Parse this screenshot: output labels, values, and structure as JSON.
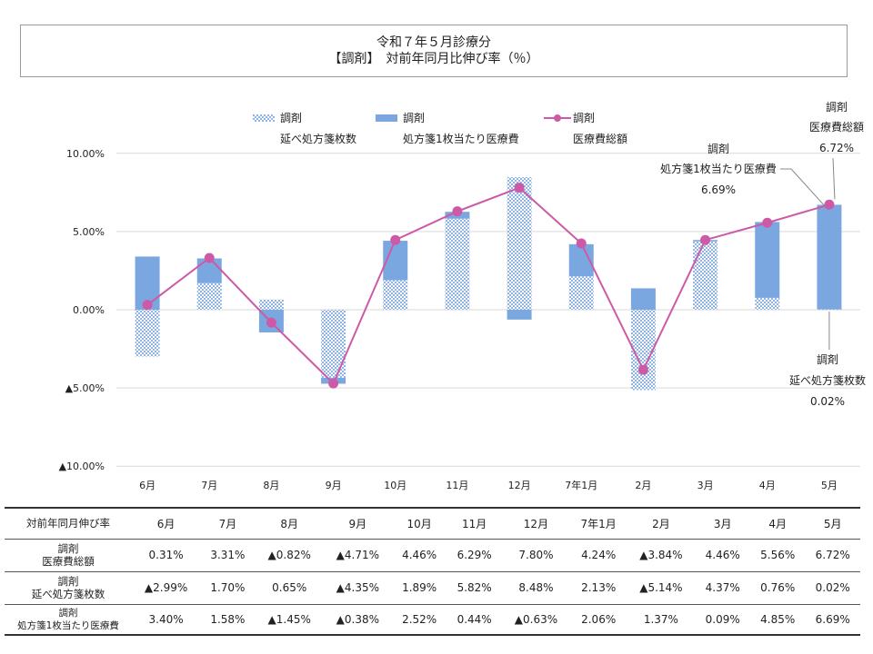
{
  "title": {
    "line1": "令和７年５月診療分",
    "line2": "【調剤】　対前年同月比伸び率（％）"
  },
  "legend": [
    {
      "line1": "調剤",
      "line2": "延べ処方箋枚数",
      "style": "pattern"
    },
    {
      "line1": "調剤",
      "line2": "処方箋1枚当たり医療費",
      "style": "solid"
    },
    {
      "line1": "調剤",
      "line2": "医療費総額",
      "style": "line"
    }
  ],
  "callouts": {
    "per_rx": {
      "line1": "調剤",
      "line2": "処方箋1枚当たり医療費",
      "value": "6.69%"
    },
    "total": {
      "line1": "調剤",
      "line2": "医療費総額",
      "value": "6.72%"
    },
    "count": {
      "line1": "調剤",
      "line2": "延べ処方箋枚数",
      "value": "0.02%"
    }
  },
  "colors": {
    "bar_solid": "#7ba7e1",
    "bar_pattern": "#8eb3e6",
    "line": "#cc5aa6",
    "grid": "#d9d9d9"
  },
  "chart_data": {
    "type": "bar",
    "stacked": true,
    "categories": [
      "6月",
      "7月",
      "8月",
      "9月",
      "10月",
      "11月",
      "12月",
      "7年1月",
      "2月",
      "3月",
      "4月",
      "5月"
    ],
    "ylim": [
      -10,
      10
    ],
    "yticks": [
      10,
      5,
      0,
      -5,
      -10
    ],
    "ytick_labels": [
      "10.00%",
      "5.00%",
      "0.00%",
      "▲5.00%",
      "▲10.00%"
    ],
    "grid": true,
    "legend_position": "top",
    "series": [
      {
        "name": "調剤 延べ処方箋枚数",
        "kind": "bar-pattern",
        "values": [
          -2.99,
          1.7,
          0.65,
          -4.35,
          1.89,
          5.82,
          8.48,
          2.13,
          -5.14,
          4.37,
          0.76,
          0.02
        ]
      },
      {
        "name": "調剤 処方箋1枚当たり医療費",
        "kind": "bar-solid",
        "values": [
          3.4,
          1.58,
          -1.45,
          -0.38,
          2.52,
          0.44,
          -0.63,
          2.06,
          1.37,
          0.09,
          4.85,
          6.69
        ]
      },
      {
        "name": "調剤 医療費総額",
        "kind": "line",
        "values": [
          0.31,
          3.31,
          -0.82,
          -4.71,
          4.46,
          6.29,
          7.8,
          4.24,
          -3.84,
          4.46,
          5.56,
          6.72
        ]
      }
    ]
  },
  "table": {
    "header_label": "対前年同月伸び率",
    "columns": [
      "6月",
      "7月",
      "8月",
      "9月",
      "10月",
      "11月",
      "12月",
      "7年1月",
      "2月",
      "3月",
      "4月",
      "5月"
    ],
    "rows": [
      {
        "label1": "調剤",
        "label2": "医療費総額",
        "cells": [
          "0.31%",
          "3.31%",
          "▲0.82%",
          "▲4.71%",
          "4.46%",
          "6.29%",
          "7.80%",
          "4.24%",
          "▲3.84%",
          "4.46%",
          "5.56%",
          "6.72%"
        ]
      },
      {
        "label1": "調剤",
        "label2": "延べ処方箋枚数",
        "cells": [
          "▲2.99%",
          "1.70%",
          "0.65%",
          "▲4.35%",
          "1.89%",
          "5.82%",
          "8.48%",
          "2.13%",
          "▲5.14%",
          "4.37%",
          "0.76%",
          "0.02%"
        ]
      },
      {
        "label1": "調剤",
        "label2": "処方箋1枚当たり医療費",
        "cells": [
          "3.40%",
          "1.58%",
          "▲1.45%",
          "▲0.38%",
          "2.52%",
          "0.44%",
          "▲0.63%",
          "2.06%",
          "1.37%",
          "0.09%",
          "4.85%",
          "6.69%"
        ]
      }
    ]
  }
}
